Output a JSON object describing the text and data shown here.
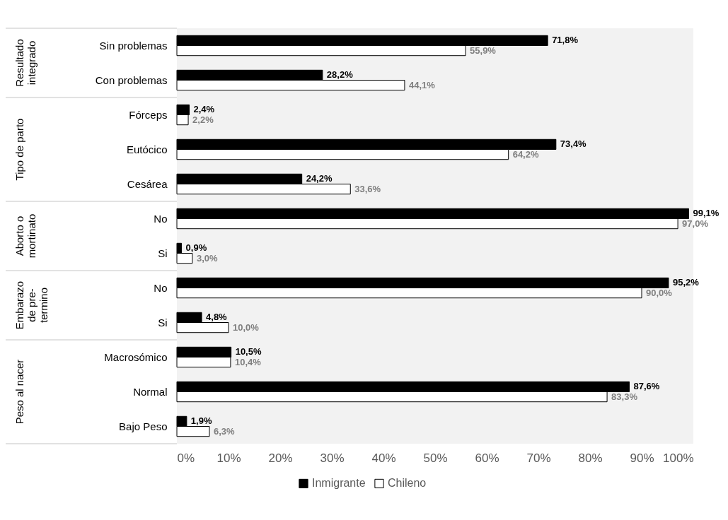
{
  "chart_data": {
    "type": "bar",
    "orientation": "horizontal",
    "categories": [
      "Sin problemas",
      "Con problemas",
      "Fórceps",
      "Eutócico",
      "Cesárea",
      "No",
      "Si",
      "No",
      "Si",
      "Macrosómico",
      "Normal",
      "Bajo Peso"
    ],
    "series": [
      {
        "name": "Inmigrante",
        "color": "#000000",
        "values": [
          71.8,
          28.2,
          2.4,
          73.4,
          24.2,
          99.1,
          0.9,
          95.2,
          4.8,
          10.5,
          87.6,
          1.9
        ],
        "value_labels": [
          "71,8%",
          "28,2%",
          "2,4%",
          "73,4%",
          "24,2%",
          "99,1%",
          "0,9%",
          "95,2%",
          "4,8%",
          "10,5%",
          "87,6%",
          "1,9%"
        ]
      },
      {
        "name": "Chileno",
        "color": "#ffffff",
        "values": [
          55.9,
          44.1,
          2.2,
          64.2,
          33.6,
          97.0,
          3.0,
          90.0,
          10.0,
          10.4,
          83.3,
          6.3
        ],
        "value_labels": [
          "55,9%",
          "44,1%",
          "2,2%",
          "64,2%",
          "33,6%",
          "97,0%",
          "3,0%",
          "90,0%",
          "10,0%",
          "10,4%",
          "83,3%",
          "6,3%"
        ]
      }
    ],
    "xlim": [
      0,
      100
    ],
    "xticks": [
      {
        "value": 0,
        "label": "0%"
      },
      {
        "value": 10,
        "label": "10%"
      },
      {
        "value": 20,
        "label": "20%"
      },
      {
        "value": 30,
        "label": "30%"
      },
      {
        "value": 40,
        "label": "40%"
      },
      {
        "value": 50,
        "label": "50%"
      },
      {
        "value": 60,
        "label": "60%"
      },
      {
        "value": 70,
        "label": "70%"
      },
      {
        "value": 80,
        "label": "80%"
      },
      {
        "value": 90,
        "label": "90%"
      },
      {
        "value": 100,
        "label": "100%"
      }
    ],
    "legend": "bottom",
    "annotations": [
      "Resultado\nintegrado",
      "Tipo de parto",
      "Aborto o\nmortinato",
      "Embarazo\nde pre-\ntermino",
      "Peso al nacer"
    ]
  }
}
